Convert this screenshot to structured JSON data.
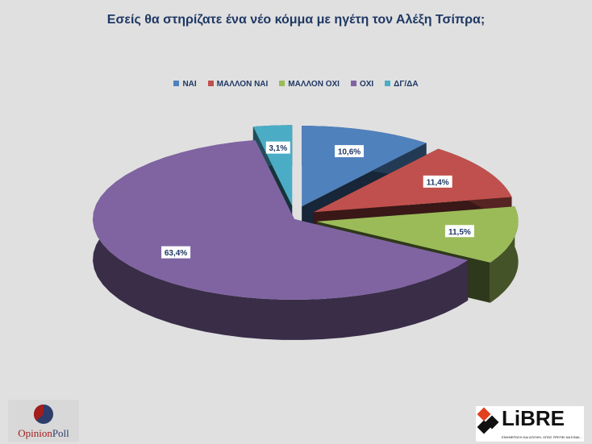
{
  "chart_data": {
    "type": "pie",
    "title": "Εσείς θα στηρίζατε  ένα νέο κόμμα με ηγέτη τον Αλέξη Τσίπρα;",
    "legend_position": "top",
    "style": "3d-exploded",
    "categories": [
      "ΝΑΙ",
      "ΜΑΛΛΟΝ ΝΑΙ",
      "ΜΑΛΛΟΝ ΟΧΙ",
      "ΟΧΙ",
      "ΔΓ/ΔΑ"
    ],
    "values": [
      10.6,
      11.4,
      11.5,
      63.4,
      3.1
    ],
    "data_labels": [
      "10,6%",
      "11,4%",
      "11,5%",
      "63,4%",
      "3,1%"
    ],
    "colors": [
      "#4f81bd",
      "#c0504d",
      "#9bbb59",
      "#8064a2",
      "#4bacc6"
    ]
  },
  "logos": {
    "left": "OpinionPoll",
    "right": "LiBRE"
  }
}
